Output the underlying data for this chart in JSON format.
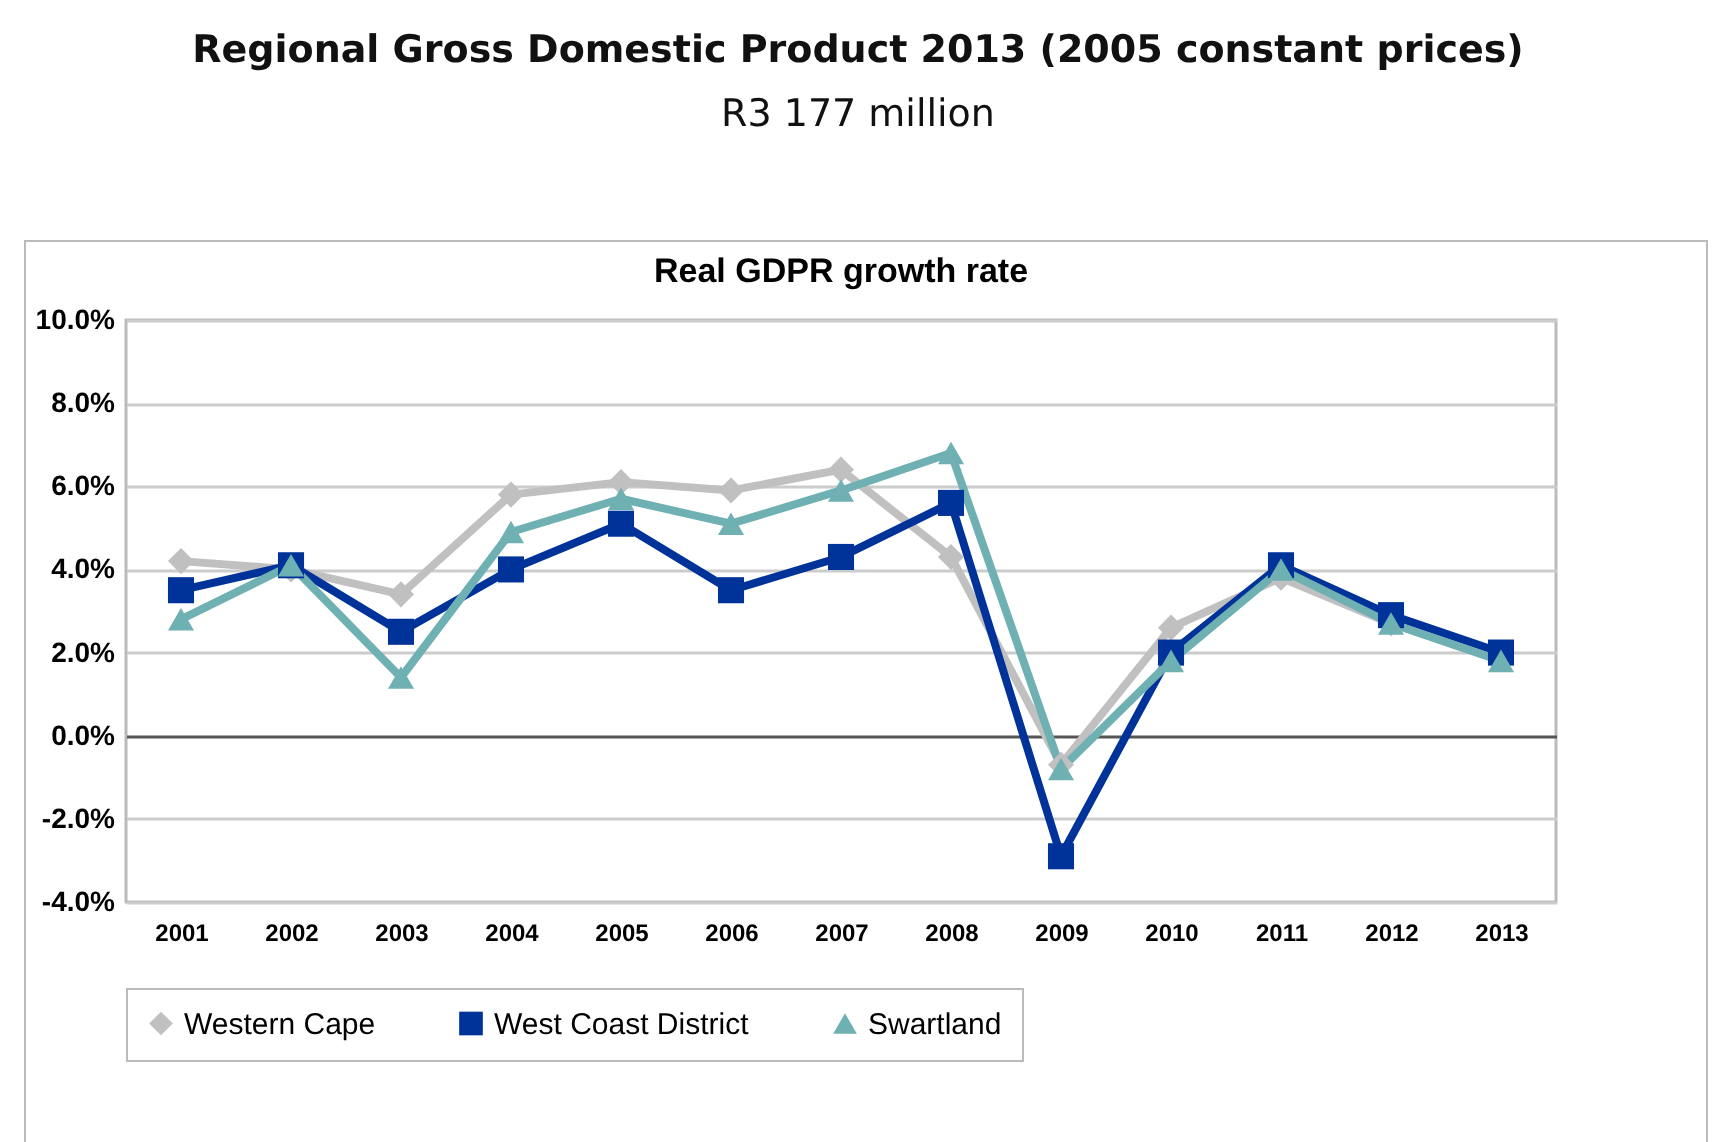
{
  "chart_data": {
    "type": "line",
    "title": "Real GDPR growth rate",
    "annotations": [
      "Regional Gross Domestic Product 2013 (2005 constant prices)",
      "R3 177 million"
    ],
    "categories": [
      "2001",
      "2002",
      "2003",
      "2004",
      "2005",
      "2006",
      "2007",
      "2008",
      "2009",
      "2010",
      "2011",
      "2012",
      "2013"
    ],
    "series": [
      {
        "name": "Western Cape",
        "color": "#c0c0c0",
        "marker": "diamond",
        "values": [
          4.2,
          4.0,
          3.4,
          5.8,
          6.1,
          5.9,
          6.4,
          4.3,
          -0.7,
          2.6,
          3.8,
          2.7,
          1.9
        ]
      },
      {
        "name": "West Coast District",
        "color": "#003399",
        "marker": "square",
        "values": [
          3.5,
          4.1,
          2.5,
          4.0,
          5.1,
          3.5,
          4.3,
          5.6,
          -2.9,
          2.0,
          4.1,
          2.9,
          2.0
        ]
      },
      {
        "name": "Swartland",
        "color": "#6fb1b3",
        "marker": "triangle",
        "values": [
          2.8,
          4.1,
          1.4,
          4.9,
          5.7,
          5.1,
          5.9,
          6.8,
          -0.8,
          1.8,
          4.0,
          2.7,
          1.8
        ]
      }
    ],
    "ylim": [
      -4,
      10
    ],
    "yticks": [
      {
        "value": -4,
        "label": "-4.0%"
      },
      {
        "value": -2,
        "label": "-2.0%"
      },
      {
        "value": 0,
        "label": "0.0%"
      },
      {
        "value": 2,
        "label": "2.0%"
      },
      {
        "value": 4,
        "label": "4.0%"
      },
      {
        "value": 6,
        "label": "6.0%"
      },
      {
        "value": 8,
        "label": "8.0%"
      },
      {
        "value": 10,
        "label": "10.0%"
      }
    ],
    "grid": "y",
    "legend": "bottom",
    "line_style": "solid"
  }
}
